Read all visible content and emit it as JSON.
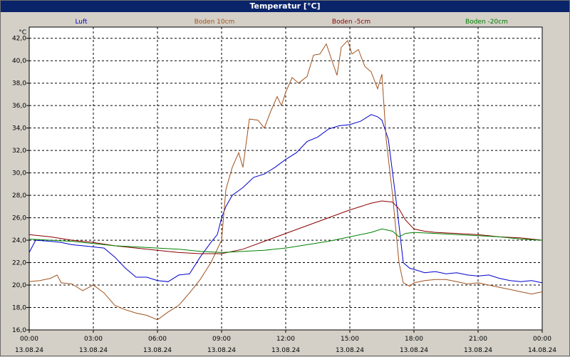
{
  "window": {
    "title": "Temperatur [°C]"
  },
  "chart_data": {
    "type": "line",
    "unit_label": "°C",
    "ylim": [
      16.0,
      43.0
    ],
    "y_ticks": [
      "16,0",
      "18,0",
      "20,0",
      "22,0",
      "24,0",
      "26,0",
      "28,0",
      "30,0",
      "32,0",
      "34,0",
      "36,0",
      "38,0",
      "40,0",
      "42,0"
    ],
    "x_ticks": [
      {
        "time": "00:00",
        "date": "13.08.24"
      },
      {
        "time": "03:00",
        "date": "13.08.24"
      },
      {
        "time": "06:00",
        "date": "13.08.24"
      },
      {
        "time": "09:00",
        "date": "13.08.24"
      },
      {
        "time": "12:00",
        "date": "13.08.24"
      },
      {
        "time": "15:00",
        "date": "13.08.24"
      },
      {
        "time": "18:00",
        "date": "13.08.24"
      },
      {
        "time": "21:00",
        "date": "13.08.24"
      },
      {
        "time": "00:00",
        "date": "14.08.24"
      }
    ],
    "grid": true,
    "legend_position": "top",
    "x_unit": "hours from 13.08.24 00:00",
    "series": [
      {
        "name": "Luft",
        "color": "#0000cc",
        "points": [
          [
            0,
            22.9
          ],
          [
            0.3,
            24.0
          ],
          [
            1.0,
            23.9
          ],
          [
            1.5,
            23.8
          ],
          [
            2.0,
            23.6
          ],
          [
            2.5,
            23.5
          ],
          [
            3.0,
            23.4
          ],
          [
            3.5,
            23.3
          ],
          [
            4.0,
            22.5
          ],
          [
            4.5,
            21.5
          ],
          [
            5.0,
            20.7
          ],
          [
            5.5,
            20.7
          ],
          [
            6.0,
            20.4
          ],
          [
            6.5,
            20.3
          ],
          [
            7.0,
            20.9
          ],
          [
            7.5,
            21.0
          ],
          [
            8.0,
            22.5
          ],
          [
            8.5,
            23.8
          ],
          [
            8.8,
            24.5
          ],
          [
            9.0,
            26.0
          ],
          [
            9.2,
            27.0
          ],
          [
            9.5,
            28.0
          ],
          [
            10.0,
            28.7
          ],
          [
            10.5,
            29.6
          ],
          [
            11.0,
            29.9
          ],
          [
            11.5,
            30.5
          ],
          [
            12.0,
            31.2
          ],
          [
            12.5,
            31.8
          ],
          [
            13.0,
            32.8
          ],
          [
            13.5,
            33.2
          ],
          [
            14.0,
            33.9
          ],
          [
            14.5,
            34.2
          ],
          [
            15.0,
            34.3
          ],
          [
            15.5,
            34.6
          ],
          [
            16.0,
            35.2
          ],
          [
            16.3,
            35.0
          ],
          [
            16.5,
            34.7
          ],
          [
            16.8,
            33.0
          ],
          [
            17.2,
            27.0
          ],
          [
            17.5,
            22.0
          ],
          [
            17.8,
            21.5
          ],
          [
            18.0,
            21.4
          ],
          [
            18.5,
            21.1
          ],
          [
            19.0,
            21.2
          ],
          [
            19.5,
            21.0
          ],
          [
            20.0,
            21.1
          ],
          [
            20.5,
            20.9
          ],
          [
            21.0,
            20.8
          ],
          [
            21.5,
            20.9
          ],
          [
            22.0,
            20.6
          ],
          [
            22.5,
            20.4
          ],
          [
            23.0,
            20.3
          ],
          [
            23.5,
            20.4
          ],
          [
            24.0,
            20.2
          ]
        ]
      },
      {
        "name": "Boden 10cm",
        "color": "#a0521e",
        "points": [
          [
            0,
            20.3
          ],
          [
            0.5,
            20.4
          ],
          [
            1.0,
            20.6
          ],
          [
            1.3,
            20.9
          ],
          [
            1.5,
            20.2
          ],
          [
            2.0,
            20.1
          ],
          [
            2.5,
            19.5
          ],
          [
            3.0,
            20.0
          ],
          [
            3.5,
            19.3
          ],
          [
            4.0,
            18.2
          ],
          [
            4.5,
            17.8
          ],
          [
            5.0,
            17.5
          ],
          [
            5.5,
            17.3
          ],
          [
            6.0,
            16.9
          ],
          [
            6.5,
            17.6
          ],
          [
            7.0,
            18.2
          ],
          [
            7.5,
            19.3
          ],
          [
            8.0,
            20.5
          ],
          [
            8.5,
            22.0
          ],
          [
            9.0,
            24.0
          ],
          [
            9.2,
            28.5
          ],
          [
            9.5,
            30.5
          ],
          [
            9.8,
            31.8
          ],
          [
            10.0,
            30.5
          ],
          [
            10.3,
            34.8
          ],
          [
            10.7,
            34.7
          ],
          [
            11.0,
            34.0
          ],
          [
            11.3,
            35.5
          ],
          [
            11.6,
            36.8
          ],
          [
            11.8,
            36.0
          ],
          [
            12.0,
            37.2
          ],
          [
            12.3,
            38.5
          ],
          [
            12.6,
            38.0
          ],
          [
            13.0,
            38.6
          ],
          [
            13.3,
            40.5
          ],
          [
            13.6,
            40.6
          ],
          [
            13.9,
            41.5
          ],
          [
            14.2,
            39.8
          ],
          [
            14.4,
            38.7
          ],
          [
            14.6,
            41.2
          ],
          [
            14.9,
            41.8
          ],
          [
            15.1,
            40.6
          ],
          [
            15.4,
            41.0
          ],
          [
            15.7,
            39.5
          ],
          [
            16.0,
            39.0
          ],
          [
            16.3,
            37.5
          ],
          [
            16.5,
            38.8
          ],
          [
            16.7,
            33.0
          ],
          [
            17.0,
            28.0
          ],
          [
            17.3,
            22.0
          ],
          [
            17.5,
            20.2
          ],
          [
            17.8,
            19.9
          ],
          [
            18.0,
            20.2
          ],
          [
            18.5,
            20.4
          ],
          [
            19.0,
            20.5
          ],
          [
            19.5,
            20.5
          ],
          [
            20.0,
            20.3
          ],
          [
            20.5,
            20.1
          ],
          [
            21.0,
            20.2
          ],
          [
            21.5,
            20.0
          ],
          [
            22.0,
            19.8
          ],
          [
            22.5,
            19.6
          ],
          [
            23.0,
            19.4
          ],
          [
            23.5,
            19.2
          ],
          [
            24.0,
            19.4
          ]
        ]
      },
      {
        "name": "Boden -5cm",
        "color": "#8b0000",
        "points": [
          [
            0,
            24.5
          ],
          [
            1.0,
            24.3
          ],
          [
            2.0,
            24.0
          ],
          [
            3.0,
            23.8
          ],
          [
            4.0,
            23.5
          ],
          [
            5.0,
            23.3
          ],
          [
            6.0,
            23.1
          ],
          [
            7.0,
            22.9
          ],
          [
            8.0,
            22.8
          ],
          [
            9.0,
            22.8
          ],
          [
            10.0,
            23.2
          ],
          [
            11.0,
            23.9
          ],
          [
            12.0,
            24.6
          ],
          [
            13.0,
            25.3
          ],
          [
            14.0,
            26.0
          ],
          [
            15.0,
            26.7
          ],
          [
            15.5,
            27.0
          ],
          [
            16.0,
            27.3
          ],
          [
            16.5,
            27.5
          ],
          [
            17.0,
            27.4
          ],
          [
            17.3,
            26.8
          ],
          [
            17.6,
            25.8
          ],
          [
            18.0,
            25.0
          ],
          [
            18.5,
            24.8
          ],
          [
            19.0,
            24.7
          ],
          [
            20.0,
            24.6
          ],
          [
            21.0,
            24.5
          ],
          [
            22.0,
            24.3
          ],
          [
            23.0,
            24.2
          ],
          [
            24.0,
            24.0
          ]
        ]
      },
      {
        "name": "Boden -20cm",
        "color": "#008000",
        "points": [
          [
            0,
            24.1
          ],
          [
            1.0,
            24.0
          ],
          [
            2.0,
            23.9
          ],
          [
            3.0,
            23.7
          ],
          [
            4.0,
            23.5
          ],
          [
            5.0,
            23.4
          ],
          [
            6.0,
            23.3
          ],
          [
            7.0,
            23.2
          ],
          [
            8.0,
            23.0
          ],
          [
            9.0,
            22.9
          ],
          [
            10.0,
            23.0
          ],
          [
            11.0,
            23.1
          ],
          [
            12.0,
            23.3
          ],
          [
            13.0,
            23.6
          ],
          [
            14.0,
            23.9
          ],
          [
            15.0,
            24.3
          ],
          [
            16.0,
            24.7
          ],
          [
            16.5,
            25.0
          ],
          [
            17.0,
            24.8
          ],
          [
            17.3,
            24.3
          ],
          [
            17.6,
            24.6
          ],
          [
            18.0,
            24.7
          ],
          [
            19.0,
            24.6
          ],
          [
            20.0,
            24.5
          ],
          [
            21.0,
            24.4
          ],
          [
            22.0,
            24.3
          ],
          [
            23.0,
            24.1
          ],
          [
            24.0,
            24.0
          ]
        ]
      }
    ]
  }
}
